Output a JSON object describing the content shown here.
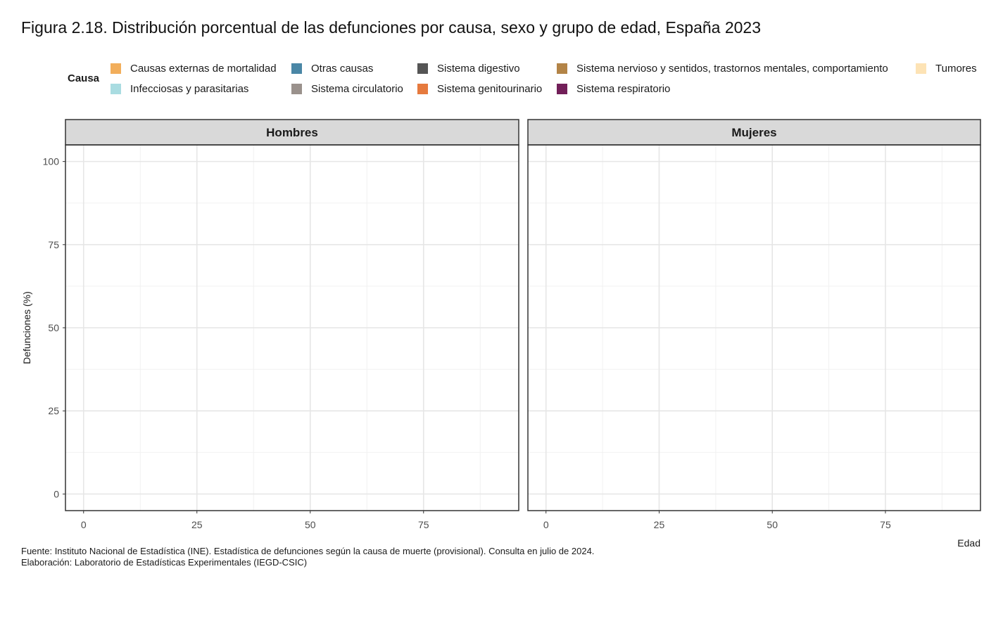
{
  "chart_data": {
    "type": "area",
    "title": "Figura 2.18. Distribución porcentual de las defunciones por causa, sexo y grupo de edad, España 2023",
    "xlabel": "Edad",
    "ylabel": "Defunciones (%)",
    "xlim": [
      -4,
      96
    ],
    "ylim": [
      -5,
      105
    ],
    "x_ticks": [
      0,
      25,
      50,
      75
    ],
    "y_ticks": [
      0,
      25,
      50,
      75,
      100
    ],
    "grid": true,
    "stacked": true,
    "legend_title": "Causa",
    "legend_position": "top",
    "legend": [
      {
        "name": "Causas externas de mortalidad",
        "color": "#F2AE5B"
      },
      {
        "name": "Otras causas",
        "color": "#4A87A6"
      },
      {
        "name": "Sistema digestivo",
        "color": "#555555"
      },
      {
        "name": "Sistema nervioso y sentidos, trastornos mentales, comportamiento",
        "color": "#B38447"
      },
      {
        "name": "Tumores",
        "color": "#FDE3B5"
      },
      {
        "name": "Infecciosas y parasitarias",
        "color": "#A9DCE1"
      },
      {
        "name": "Sistema circulatorio",
        "color": "#9A918C"
      },
      {
        "name": "Sistema genitourinario",
        "color": "#E67A3E"
      },
      {
        "name": "Sistema respiratorio",
        "color": "#721F59"
      }
    ],
    "panels": [
      {
        "name": "Hombres",
        "series": []
      },
      {
        "name": "Mujeres",
        "series": []
      }
    ]
  },
  "source": {
    "line1": "Fuente: Instituto Nacional de Estadística (INE). Estadística de defunciones según la causa de muerte (provisional). Consulta en julio de 2024.",
    "line2": "Elaboración: Laboratorio de Estadísticas Experimentales (IEGD-CSIC)"
  }
}
